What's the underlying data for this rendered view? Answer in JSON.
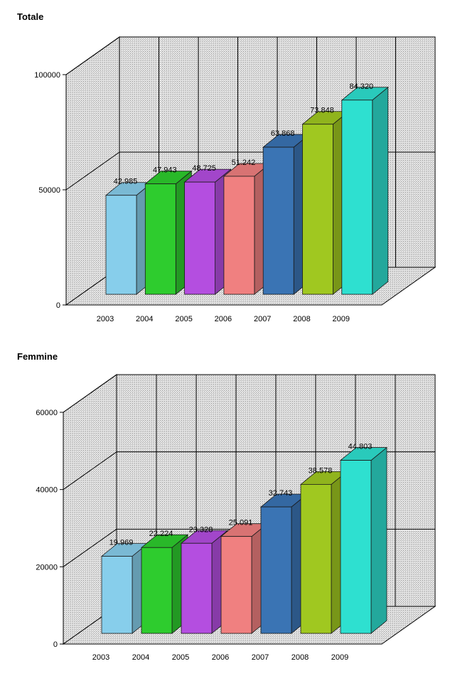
{
  "charts": [
    {
      "title": "Totale"
    },
    {
      "title": "Femmine"
    }
  ],
  "chart_data": [
    {
      "type": "bar",
      "title": "Totale",
      "xlabel": "",
      "ylabel": "",
      "categories": [
        "2003",
        "2004",
        "2005",
        "2006",
        "2007",
        "2008",
        "2009"
      ],
      "values": [
        42985,
        47943,
        48725,
        51242,
        63868,
        73848,
        84320
      ],
      "data_labels": [
        "42.985",
        "47.943",
        "48.725",
        "51.242",
        "63.868",
        "73.848",
        "84.320"
      ],
      "yticks": [
        "0",
        "50000",
        "100000"
      ],
      "ylim": [
        0,
        100000
      ],
      "colors": [
        "#87ceeb",
        "#2ecc2e",
        "#b44ee0",
        "#f08080",
        "#3a74b4",
        "#a0c820",
        "#2ee0d0"
      ],
      "grid": true
    },
    {
      "type": "bar",
      "title": "Femmine",
      "xlabel": "",
      "ylabel": "",
      "categories": [
        "2003",
        "2004",
        "2005",
        "2006",
        "2007",
        "2008",
        "2009"
      ],
      "values": [
        19969,
        22224,
        23328,
        25091,
        32743,
        38578,
        44803
      ],
      "data_labels": [
        "19.969",
        "22.224",
        "23.328",
        "25.091",
        "32.743",
        "38.578",
        "44.803"
      ],
      "yticks": [
        "0",
        "20000",
        "40000",
        "60000"
      ],
      "ylim": [
        0,
        60000
      ],
      "colors": [
        "#87ceeb",
        "#2ecc2e",
        "#b44ee0",
        "#f08080",
        "#3a74b4",
        "#a0c820",
        "#2ee0d0"
      ],
      "grid": true
    }
  ]
}
